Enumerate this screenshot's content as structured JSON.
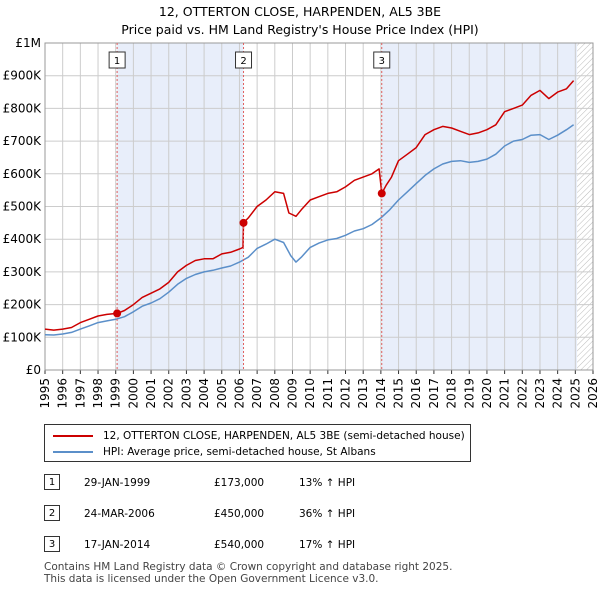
{
  "title": "12, OTTERTON CLOSE, HARPENDEN, AL5 3BE",
  "subtitle": "Price paid vs. HM Land Registry's House Price Index (HPI)",
  "colors": {
    "property": "#cc0000",
    "hpi": "#5b8fc9",
    "shade": "#e8eefa",
    "grid": "#cccccc",
    "marker_line": "#e06060"
  },
  "chart_data": {
    "type": "line",
    "title": "12, OTTERTON CLOSE, HARPENDEN, AL5 3BE",
    "subtitle": "Price paid vs. HM Land Registry's House Price Index (HPI)",
    "xlabel": "",
    "ylabel": "",
    "xlim": [
      1995,
      2026
    ],
    "ylim": [
      0,
      1000000
    ],
    "y_ticks": [
      {
        "value": 0,
        "label": "£0"
      },
      {
        "value": 100000,
        "label": "£100K"
      },
      {
        "value": 200000,
        "label": "£200K"
      },
      {
        "value": 300000,
        "label": "£300K"
      },
      {
        "value": 400000,
        "label": "£400K"
      },
      {
        "value": 500000,
        "label": "£500K"
      },
      {
        "value": 600000,
        "label": "£600K"
      },
      {
        "value": 700000,
        "label": "£700K"
      },
      {
        "value": 800000,
        "label": "£800K"
      },
      {
        "value": 900000,
        "label": "£900K"
      },
      {
        "value": 1000000,
        "label": "£1M"
      }
    ],
    "x_ticks": [
      "1995",
      "1996",
      "1997",
      "1998",
      "1999",
      "2000",
      "2001",
      "2002",
      "2003",
      "2004",
      "2005",
      "2006",
      "2007",
      "2008",
      "2009",
      "2010",
      "2011",
      "2012",
      "2013",
      "2014",
      "2015",
      "2016",
      "2017",
      "2018",
      "2019",
      "2020",
      "2021",
      "2022",
      "2023",
      "2024",
      "2025",
      "2026"
    ],
    "grid": true,
    "legend_position": "bottom",
    "future_hatch_from": 2025.1,
    "series": [
      {
        "name": "12, OTTERTON CLOSE, HARPENDEN, AL5 3BE (semi-detached house)",
        "color": "#cc0000",
        "x": [
          1995.0,
          1995.5,
          1996.0,
          1996.5,
          1997.0,
          1997.5,
          1998.0,
          1998.5,
          1999.08,
          1999.5,
          2000.0,
          2000.5,
          2001.0,
          2001.5,
          2002.0,
          2002.5,
          2003.0,
          2003.5,
          2004.0,
          2004.5,
          2005.0,
          2005.5,
          2006.0,
          2006.2,
          2006.23,
          2006.5,
          2007.0,
          2007.5,
          2008.0,
          2008.5,
          2008.8,
          2009.2,
          2009.5,
          2010.0,
          2010.5,
          2011.0,
          2011.5,
          2012.0,
          2012.5,
          2013.0,
          2013.5,
          2013.9,
          2014.05,
          2014.3,
          2014.6,
          2015.0,
          2015.5,
          2016.0,
          2016.5,
          2017.0,
          2017.5,
          2018.0,
          2018.5,
          2019.0,
          2019.5,
          2020.0,
          2020.5,
          2021.0,
          2021.5,
          2022.0,
          2022.5,
          2023.0,
          2023.5,
          2024.0,
          2024.5,
          2024.9
        ],
        "values": [
          125000,
          122000,
          125000,
          130000,
          145000,
          155000,
          165000,
          170000,
          173000,
          182000,
          200000,
          222000,
          235000,
          248000,
          268000,
          300000,
          320000,
          335000,
          340000,
          340000,
          355000,
          360000,
          370000,
          375000,
          450000,
          465000,
          500000,
          520000,
          545000,
          540000,
          480000,
          470000,
          490000,
          520000,
          530000,
          540000,
          545000,
          560000,
          580000,
          590000,
          600000,
          615000,
          540000,
          565000,
          590000,
          640000,
          660000,
          680000,
          720000,
          735000,
          745000,
          740000,
          730000,
          720000,
          725000,
          735000,
          750000,
          790000,
          800000,
          810000,
          840000,
          855000,
          830000,
          850000,
          860000,
          885000
        ]
      },
      {
        "name": "HPI: Average price, semi-detached house, St Albans",
        "color": "#5b8fc9",
        "x": [
          1995.0,
          1995.5,
          1996.0,
          1996.5,
          1997.0,
          1997.5,
          1998.0,
          1998.5,
          1999.0,
          1999.5,
          2000.0,
          2000.5,
          2001.0,
          2001.5,
          2002.0,
          2002.5,
          2003.0,
          2003.5,
          2004.0,
          2004.5,
          2005.0,
          2005.5,
          2006.0,
          2006.5,
          2007.0,
          2007.5,
          2008.0,
          2008.5,
          2008.9,
          2009.2,
          2009.5,
          2010.0,
          2010.5,
          2011.0,
          2011.5,
          2012.0,
          2012.5,
          2013.0,
          2013.5,
          2014.0,
          2014.5,
          2015.0,
          2015.5,
          2016.0,
          2016.5,
          2017.0,
          2017.5,
          2018.0,
          2018.5,
          2019.0,
          2019.5,
          2020.0,
          2020.5,
          2021.0,
          2021.5,
          2022.0,
          2022.5,
          2023.0,
          2023.5,
          2024.0,
          2024.5,
          2024.9
        ],
        "values": [
          108000,
          107000,
          110000,
          115000,
          125000,
          135000,
          145000,
          150000,
          155000,
          163000,
          178000,
          195000,
          205000,
          218000,
          238000,
          262000,
          280000,
          292000,
          300000,
          305000,
          312000,
          318000,
          330000,
          345000,
          372000,
          385000,
          400000,
          390000,
          350000,
          330000,
          345000,
          375000,
          388000,
          398000,
          402000,
          412000,
          425000,
          432000,
          445000,
          465000,
          490000,
          520000,
          545000,
          570000,
          595000,
          615000,
          630000,
          638000,
          640000,
          635000,
          638000,
          645000,
          660000,
          685000,
          700000,
          705000,
          718000,
          720000,
          705000,
          718000,
          735000,
          750000
        ]
      }
    ],
    "sales": [
      {
        "number": "1",
        "x": 1999.08,
        "value": 173000,
        "date": "29-JAN-1999",
        "price": "£173,000",
        "hpi": "13% ↑ HPI"
      },
      {
        "number": "2",
        "x": 2006.23,
        "value": 450000,
        "date": "24-MAR-2006",
        "price": "£450,000",
        "hpi": "36% ↑ HPI"
      },
      {
        "number": "3",
        "x": 2014.05,
        "value": 540000,
        "date": "17-JAN-2014",
        "price": "£540,000",
        "hpi": "17% ↑ HPI"
      }
    ]
  },
  "legend": {
    "property": "12, OTTERTON CLOSE, HARPENDEN, AL5 3BE (semi-detached house)",
    "hpi": "HPI: Average price, semi-detached house, St Albans"
  },
  "footer": {
    "line1": "Contains HM Land Registry data © Crown copyright and database right 2025.",
    "line2": "This data is licensed under the Open Government Licence v3.0."
  }
}
